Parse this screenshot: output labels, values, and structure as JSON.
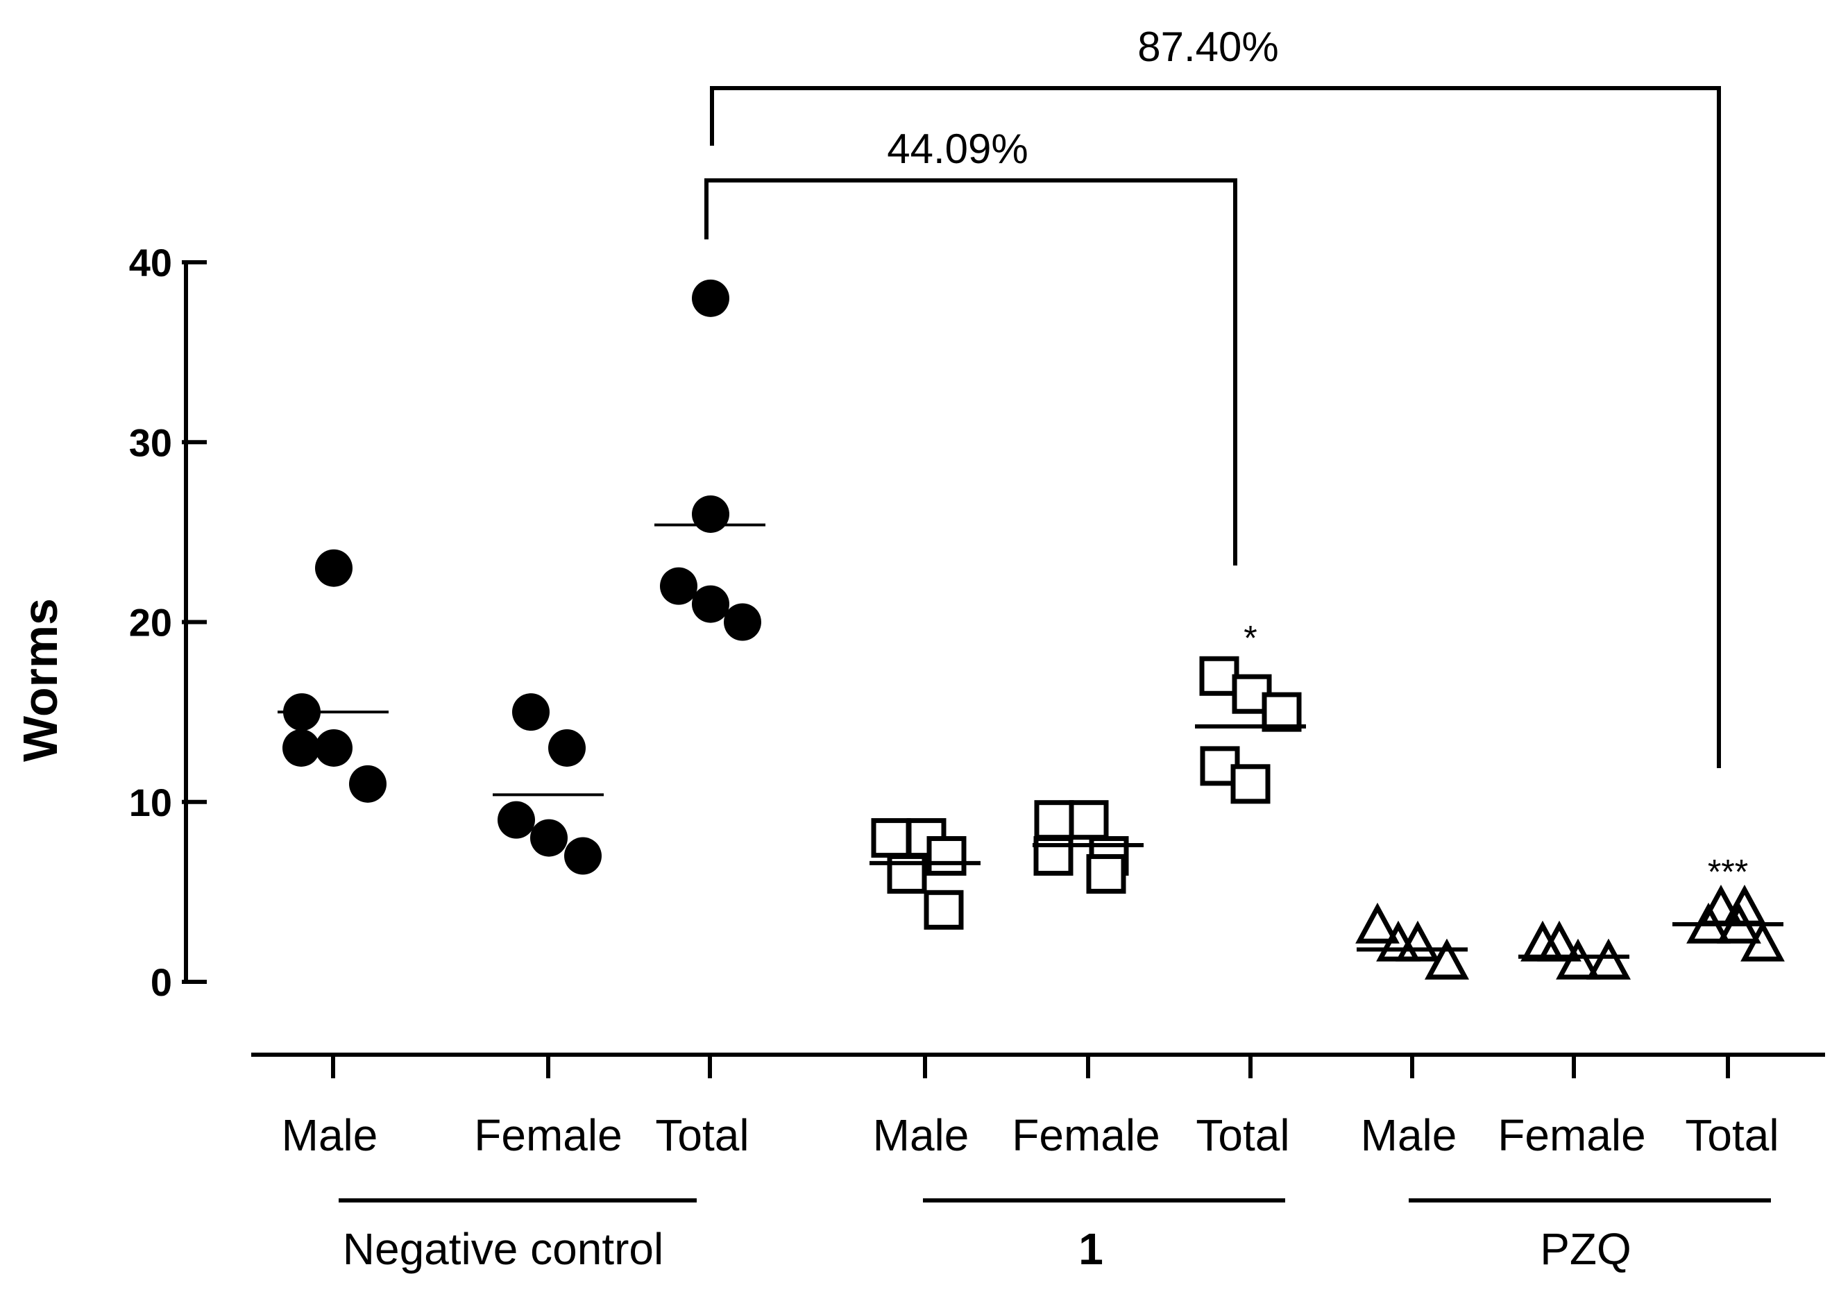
{
  "chart_data": {
    "type": "scatter",
    "ylabel": "Worms",
    "ylim": [
      0,
      40
    ],
    "yticks": [
      0,
      10,
      20,
      30,
      40
    ],
    "columns": [
      {
        "group": "Negative control",
        "category": "Male",
        "marker": "circle-filled",
        "values": [
          23,
          15,
          13,
          13,
          11
        ],
        "mean": 15
      },
      {
        "group": "Negative control",
        "category": "Female",
        "marker": "circle-filled",
        "values": [
          15,
          13,
          9,
          8,
          7
        ],
        "mean": 10.4
      },
      {
        "group": "Negative control",
        "category": "Total",
        "marker": "circle-filled",
        "values": [
          38,
          26,
          22,
          21,
          20
        ],
        "mean": 25.4
      },
      {
        "group": "1",
        "category": "Male",
        "marker": "square-open",
        "values": [
          8,
          8,
          7,
          6,
          4
        ],
        "mean": 6.6
      },
      {
        "group": "1",
        "category": "Female",
        "marker": "square-open",
        "values": [
          9,
          9,
          7,
          7,
          6
        ],
        "mean": 7.6
      },
      {
        "group": "1",
        "category": "Total",
        "marker": "square-open",
        "values": [
          17,
          16,
          15,
          12,
          11
        ],
        "mean": 14.2,
        "significance": "*"
      },
      {
        "group": "PZQ",
        "category": "Male",
        "marker": "triangle-open",
        "values": [
          3,
          2,
          2,
          1,
          1
        ],
        "mean": 1.8
      },
      {
        "group": "PZQ",
        "category": "Female",
        "marker": "triangle-open",
        "values": [
          2,
          2,
          1,
          1,
          1
        ],
        "mean": 1.4
      },
      {
        "group": "PZQ",
        "category": "Total",
        "marker": "triangle-open",
        "values": [
          4,
          4,
          3,
          3,
          2
        ],
        "mean": 3.2,
        "significance": "***"
      }
    ],
    "groups": [
      "Negative control",
      "1",
      "PZQ"
    ],
    "brackets": [
      {
        "from": "Negative control Total",
        "to": "1 Total",
        "label": "44.09%"
      },
      {
        "from": "Negative control Total",
        "to": "PZQ Total",
        "label": "87.40%"
      }
    ]
  }
}
